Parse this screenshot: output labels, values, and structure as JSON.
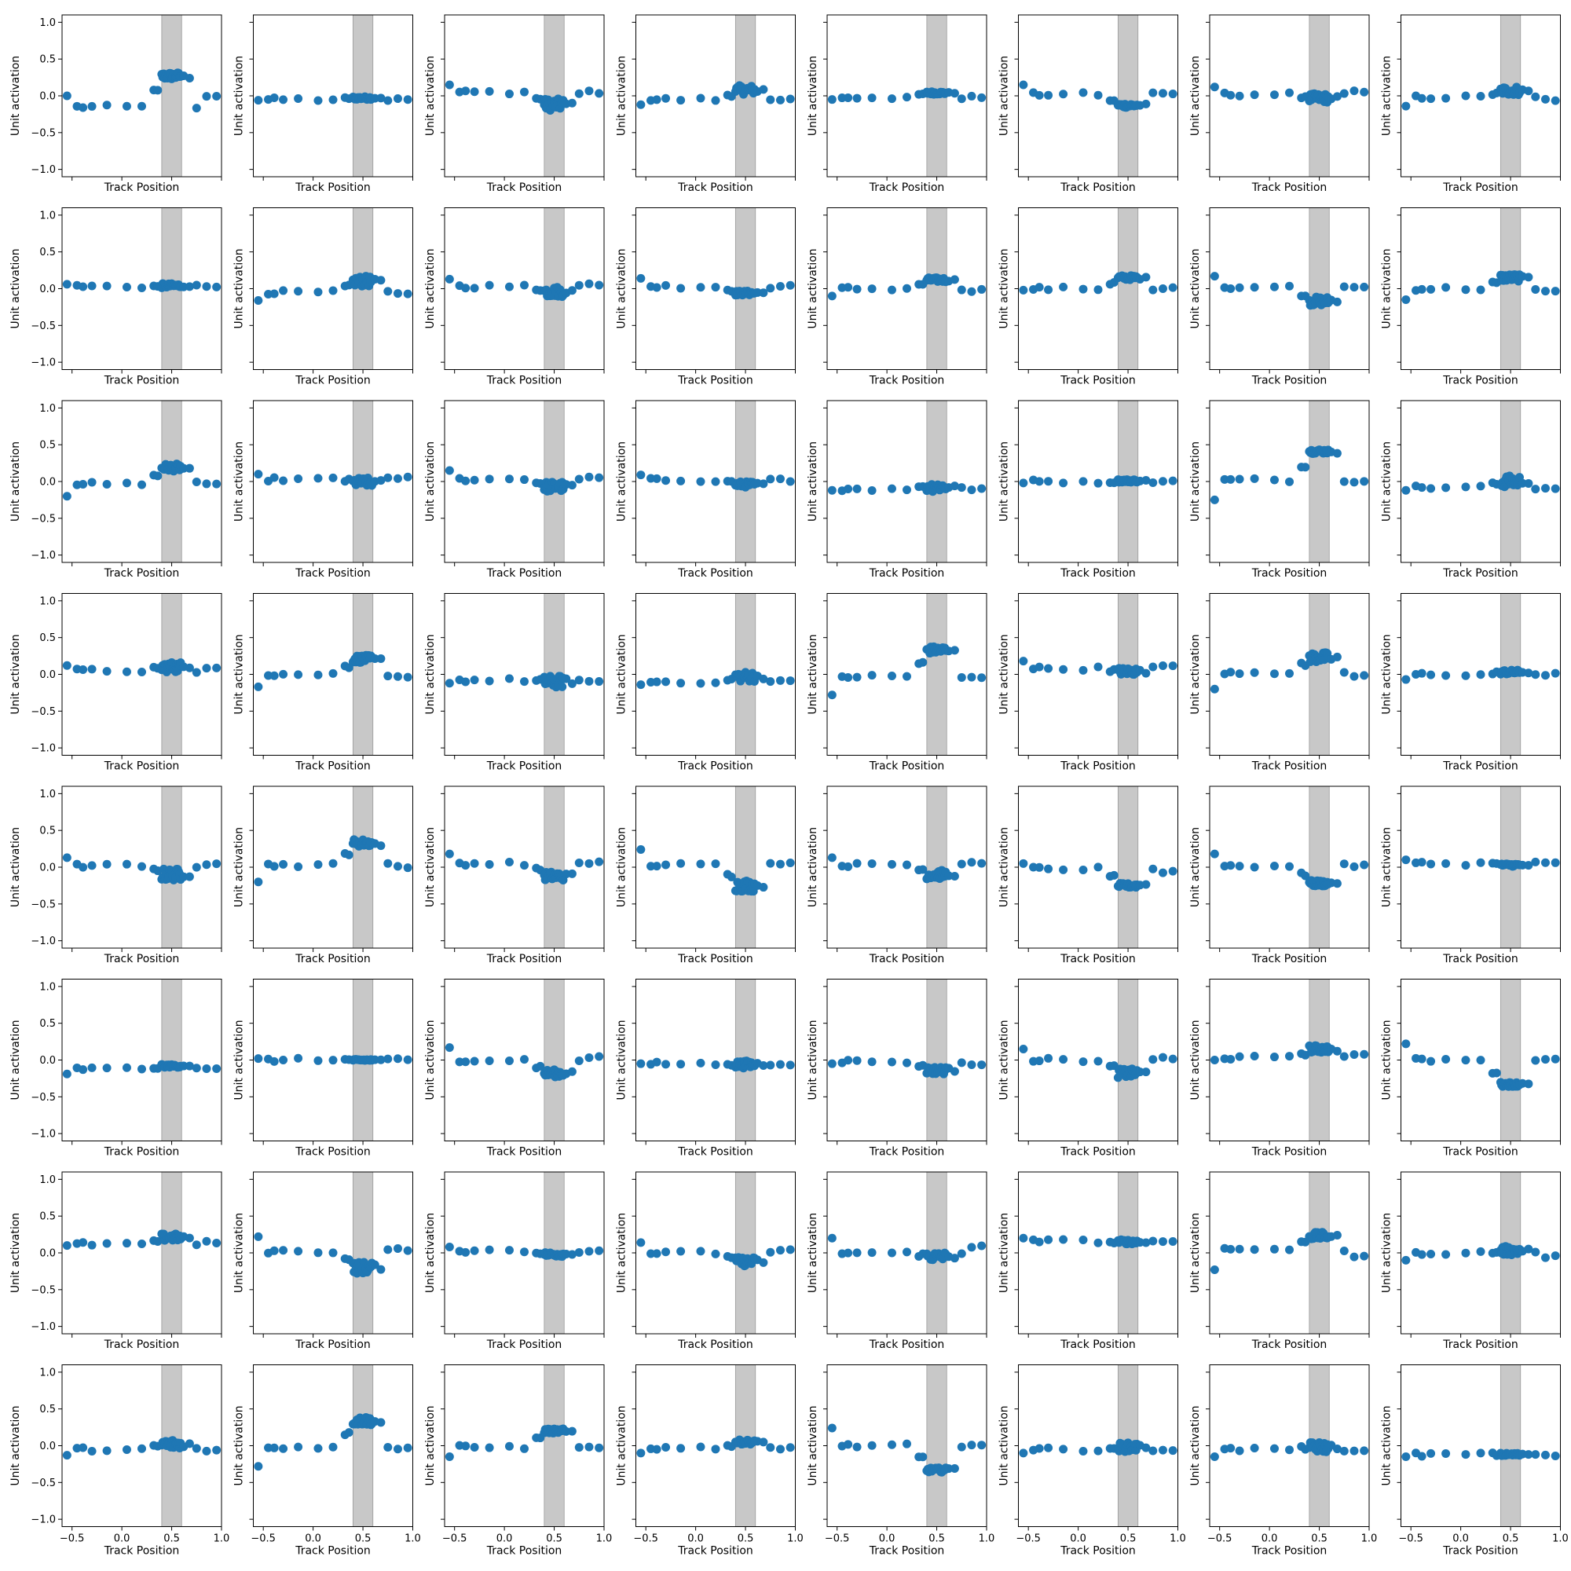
{
  "chart_data": {
    "type": "scatter",
    "grid": false,
    "layout": {
      "rows": 8,
      "cols": 8,
      "sharex": true,
      "sharey": true
    },
    "xlabel": "Track Position",
    "ylabel": "Unit activation",
    "xlim": [
      -0.6,
      1.0
    ],
    "ylim": [
      -1.1,
      1.1
    ],
    "xticks": [
      -0.5,
      0.0,
      0.5,
      1.0
    ],
    "xtick_labels": [
      "−0.5",
      "0.0",
      "0.5",
      "1.0"
    ],
    "yticks": [
      -1.0,
      -0.5,
      0.0,
      0.5,
      1.0
    ],
    "ytick_labels": [
      "−1.0",
      "−0.5",
      "0.0",
      "0.5",
      "1.0"
    ],
    "shaded_band": {
      "x_range": [
        0.4,
        0.6
      ],
      "color": "#c8c8c8"
    },
    "marker_color": "#1f77b4",
    "x_positions": [
      -0.55,
      -0.45,
      -0.39,
      -0.3,
      -0.15,
      0.05,
      0.2,
      0.32,
      0.36,
      0.4,
      0.42,
      0.44,
      0.46,
      0.48,
      0.5,
      0.52,
      0.54,
      0.56,
      0.58,
      0.62,
      0.68,
      0.75,
      0.85,
      0.95
    ],
    "panels": [
      {
        "label": "r1c1",
        "center": -0.15,
        "cluster": 0.27,
        "left_edge": 0.0,
        "right": 0.0,
        "spread": 0.05
      },
      {
        "label": "r1c2",
        "center": -0.05,
        "cluster": -0.03,
        "left_edge": -0.06,
        "right": -0.05,
        "spread": 0.02
      },
      {
        "label": "r1c3",
        "center": 0.05,
        "cluster": -0.12,
        "left_edge": 0.15,
        "right": 0.05,
        "spread": 0.08
      },
      {
        "label": "r1c4",
        "center": -0.05,
        "cluster": 0.08,
        "left_edge": -0.12,
        "right": -0.05,
        "spread": 0.06
      },
      {
        "label": "r1c5",
        "center": -0.02,
        "cluster": 0.04,
        "left_edge": -0.05,
        "right": -0.02,
        "spread": 0.02
      },
      {
        "label": "r1c6",
        "center": 0.02,
        "cluster": -0.13,
        "left_edge": 0.15,
        "right": 0.03,
        "spread": 0.03
      },
      {
        "label": "r1c7",
        "center": 0.02,
        "cluster": -0.03,
        "left_edge": 0.12,
        "right": 0.05,
        "spread": 0.06
      },
      {
        "label": "r1c8",
        "center": -0.02,
        "cluster": 0.07,
        "left_edge": -0.14,
        "right": -0.05,
        "spread": 0.06
      },
      {
        "label": "r2c1",
        "center": 0.03,
        "cluster": 0.04,
        "left_edge": 0.06,
        "right": 0.03,
        "spread": 0.03
      },
      {
        "label": "r2c2",
        "center": -0.05,
        "cluster": 0.1,
        "left_edge": -0.16,
        "right": -0.06,
        "spread": 0.07
      },
      {
        "label": "r2c3",
        "center": 0.03,
        "cluster": -0.04,
        "left_edge": 0.13,
        "right": 0.06,
        "spread": 0.07
      },
      {
        "label": "r2c4",
        "center": 0.03,
        "cluster": -0.06,
        "left_edge": 0.14,
        "right": 0.03,
        "spread": 0.03
      },
      {
        "label": "r2c5",
        "center": 0.0,
        "cluster": 0.12,
        "left_edge": -0.1,
        "right": -0.02,
        "spread": 0.03
      },
      {
        "label": "r2c6",
        "center": 0.0,
        "cluster": 0.15,
        "left_edge": -0.02,
        "right": 0.02,
        "spread": 0.03
      },
      {
        "label": "r2c7",
        "center": 0.02,
        "cluster": -0.17,
        "left_edge": 0.17,
        "right": 0.02,
        "spread": 0.06
      },
      {
        "label": "r2c8",
        "center": 0.0,
        "cluster": 0.15,
        "left_edge": -0.15,
        "right": -0.02,
        "spread": 0.05
      },
      {
        "label": "r3c1",
        "center": -0.03,
        "cluster": 0.19,
        "left_edge": -0.2,
        "right": -0.05,
        "spread": 0.05
      },
      {
        "label": "r3c2",
        "center": 0.03,
        "cluster": -0.01,
        "left_edge": 0.1,
        "right": 0.05,
        "spread": 0.06
      },
      {
        "label": "r3c3",
        "center": 0.03,
        "cluster": -0.07,
        "left_edge": 0.15,
        "right": 0.05,
        "spread": 0.07
      },
      {
        "label": "r3c4",
        "center": 0.02,
        "cluster": -0.04,
        "left_edge": 0.09,
        "right": 0.02,
        "spread": 0.04
      },
      {
        "label": "r3c5",
        "center": -0.1,
        "cluster": -0.07,
        "left_edge": -0.12,
        "right": -0.1,
        "spread": 0.07
      },
      {
        "label": "r3c6",
        "center": 0.0,
        "cluster": 0.01,
        "left_edge": -0.02,
        "right": 0.0,
        "spread": 0.02
      },
      {
        "label": "r3c7",
        "center": 0.02,
        "cluster": 0.41,
        "left_edge": -0.25,
        "right": 0.01,
        "spread": 0.03
      },
      {
        "label": "r3c8",
        "center": -0.08,
        "cluster": 0.0,
        "left_edge": -0.12,
        "right": -0.09,
        "spread": 0.08
      },
      {
        "label": "r4c1",
        "center": 0.05,
        "cluster": 0.1,
        "left_edge": 0.12,
        "right": 0.1,
        "spread": 0.07
      },
      {
        "label": "r4c2",
        "center": 0.0,
        "cluster": 0.21,
        "left_edge": -0.17,
        "right": -0.03,
        "spread": 0.05
      },
      {
        "label": "r4c3",
        "center": -0.08,
        "cluster": -0.1,
        "left_edge": -0.12,
        "right": -0.1,
        "spread": 0.08
      },
      {
        "label": "r4c4",
        "center": -0.1,
        "cluster": -0.03,
        "left_edge": -0.14,
        "right": -0.1,
        "spread": 0.07
      },
      {
        "label": "r4c5",
        "center": -0.03,
        "cluster": 0.33,
        "left_edge": -0.28,
        "right": -0.03,
        "spread": 0.05
      },
      {
        "label": "r4c6",
        "center": 0.08,
        "cluster": 0.04,
        "left_edge": 0.18,
        "right": 0.12,
        "spread": 0.05
      },
      {
        "label": "r4c7",
        "center": 0.03,
        "cluster": 0.23,
        "left_edge": -0.2,
        "right": -0.03,
        "spread": 0.07
      },
      {
        "label": "r4c8",
        "center": 0.0,
        "cluster": 0.03,
        "left_edge": -0.07,
        "right": 0.0,
        "spread": 0.03
      },
      {
        "label": "r5c1",
        "center": 0.02,
        "cluster": -0.1,
        "left_edge": 0.13,
        "right": 0.05,
        "spread": 0.08
      },
      {
        "label": "r5c2",
        "center": 0.03,
        "cluster": 0.33,
        "left_edge": -0.2,
        "right": 0.0,
        "spread": 0.05
      },
      {
        "label": "r5c3",
        "center": 0.05,
        "cluster": -0.12,
        "left_edge": 0.18,
        "right": 0.06,
        "spread": 0.06
      },
      {
        "label": "r5c4",
        "center": 0.03,
        "cluster": -0.25,
        "left_edge": 0.24,
        "right": 0.06,
        "spread": 0.08
      },
      {
        "label": "r5c5",
        "center": 0.03,
        "cluster": -0.1,
        "left_edge": 0.13,
        "right": 0.05,
        "spread": 0.06
      },
      {
        "label": "r5c6",
        "center": -0.02,
        "cluster": -0.25,
        "left_edge": 0.05,
        "right": -0.06,
        "spread": 0.03
      },
      {
        "label": "r5c7",
        "center": 0.02,
        "cluster": -0.22,
        "left_edge": 0.18,
        "right": 0.02,
        "spread": 0.04
      },
      {
        "label": "r5c8",
        "center": 0.05,
        "cluster": 0.03,
        "left_edge": 0.1,
        "right": 0.05,
        "spread": 0.02
      },
      {
        "label": "r6c1",
        "center": -0.12,
        "cluster": -0.08,
        "left_edge": -0.19,
        "right": -0.13,
        "spread": 0.02
      },
      {
        "label": "r6c2",
        "center": 0.0,
        "cluster": 0.0,
        "left_edge": 0.02,
        "right": 0.01,
        "spread": 0.01
      },
      {
        "label": "r6c3",
        "center": 0.0,
        "cluster": -0.18,
        "left_edge": 0.17,
        "right": 0.03,
        "spread": 0.05
      },
      {
        "label": "r6c4",
        "center": -0.05,
        "cluster": -0.06,
        "left_edge": -0.05,
        "right": -0.05,
        "spread": 0.05
      },
      {
        "label": "r6c5",
        "center": -0.02,
        "cluster": -0.14,
        "left_edge": -0.05,
        "right": -0.05,
        "spread": 0.05
      },
      {
        "label": "r6c6",
        "center": 0.0,
        "cluster": -0.18,
        "left_edge": 0.15,
        "right": 0.03,
        "spread": 0.06
      },
      {
        "label": "r6c7",
        "center": 0.03,
        "cluster": 0.15,
        "left_edge": 0.0,
        "right": 0.08,
        "spread": 0.05
      },
      {
        "label": "r6c8",
        "center": 0.0,
        "cluster": -0.33,
        "left_edge": 0.22,
        "right": 0.0,
        "spread": 0.03
      },
      {
        "label": "r7c1",
        "center": 0.12,
        "cluster": 0.21,
        "left_edge": 0.1,
        "right": 0.14,
        "spread": 0.05
      },
      {
        "label": "r7c2",
        "center": 0.02,
        "cluster": -0.2,
        "left_edge": 0.22,
        "right": 0.05,
        "spread": 0.08
      },
      {
        "label": "r7c3",
        "center": 0.03,
        "cluster": -0.02,
        "left_edge": 0.08,
        "right": 0.03,
        "spread": 0.03
      },
      {
        "label": "r7c4",
        "center": 0.0,
        "cluster": -0.12,
        "left_edge": 0.14,
        "right": 0.03,
        "spread": 0.06
      },
      {
        "label": "r7c5",
        "center": 0.0,
        "cluster": -0.05,
        "left_edge": 0.2,
        "right": 0.08,
        "spread": 0.06
      },
      {
        "label": "r7c6",
        "center": 0.16,
        "cluster": 0.15,
        "left_edge": 0.2,
        "right": 0.17,
        "spread": 0.03
      },
      {
        "label": "r7c7",
        "center": 0.05,
        "cluster": 0.23,
        "left_edge": -0.23,
        "right": -0.06,
        "spread": 0.05
      },
      {
        "label": "r7c8",
        "center": 0.0,
        "cluster": 0.03,
        "left_edge": -0.1,
        "right": -0.05,
        "spread": 0.06
      },
      {
        "label": "r8c1",
        "center": -0.05,
        "cluster": 0.02,
        "left_edge": -0.13,
        "right": -0.07,
        "spread": 0.07
      },
      {
        "label": "r8c2",
        "center": -0.02,
        "cluster": 0.34,
        "left_edge": -0.28,
        "right": -0.04,
        "spread": 0.06
      },
      {
        "label": "r8c3",
        "center": -0.02,
        "cluster": 0.2,
        "left_edge": -0.15,
        "right": -0.02,
        "spread": 0.03
      },
      {
        "label": "r8c4",
        "center": -0.03,
        "cluster": 0.05,
        "left_edge": -0.1,
        "right": -0.03,
        "spread": 0.03
      },
      {
        "label": "r8c5",
        "center": 0.0,
        "cluster": -0.33,
        "left_edge": 0.24,
        "right": 0.02,
        "spread": 0.03
      },
      {
        "label": "r8c6",
        "center": -0.05,
        "cluster": -0.02,
        "left_edge": -0.1,
        "right": -0.05,
        "spread": 0.06
      },
      {
        "label": "r8c7",
        "center": -0.05,
        "cluster": -0.02,
        "left_edge": -0.15,
        "right": -0.08,
        "spread": 0.07
      },
      {
        "label": "r8c8",
        "center": -0.12,
        "cluster": -0.12,
        "left_edge": -0.15,
        "right": -0.12,
        "spread": 0.02
      }
    ]
  }
}
